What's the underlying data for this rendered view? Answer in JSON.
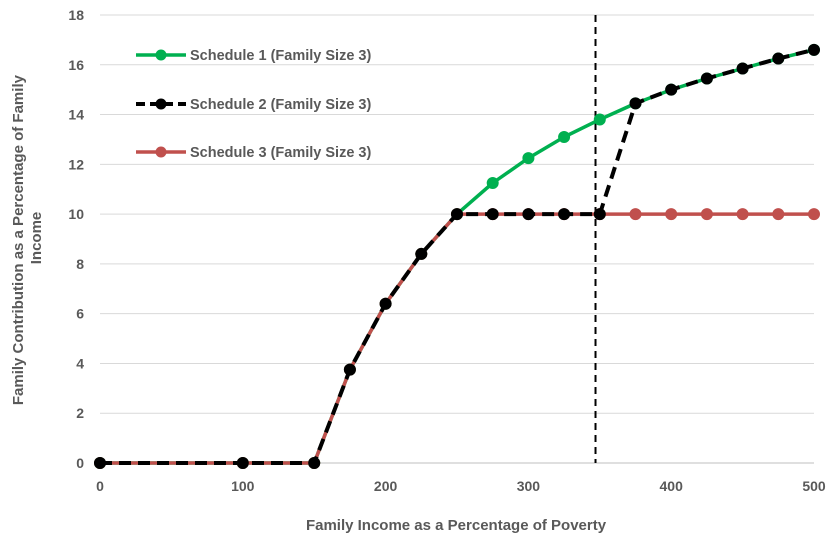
{
  "chart_data": {
    "type": "line",
    "title": "",
    "xlabel": "Family Income as a Percentage of Poverty",
    "ylabel": "Family Contribution as a Percentage of Family Income",
    "ylabel_lines": [
      "Family Contribution as a Percentage of Family",
      "Income"
    ],
    "xlim": [
      0,
      500
    ],
    "ylim": [
      0,
      18
    ],
    "x_ticks": [
      0,
      100,
      200,
      300,
      400,
      500
    ],
    "y_ticks": [
      0,
      2,
      4,
      6,
      8,
      10,
      12,
      14,
      16,
      18
    ],
    "grid": "horizontal",
    "legend_position": "top-left",
    "reference_line": {
      "x": 347,
      "style": "dashed",
      "color": "#000000"
    },
    "series": [
      {
        "name": "Schedule 1 (Family Size 3)",
        "color": "#00B050",
        "style": "solid",
        "marker": "circle",
        "points": [
          [
            0,
            0
          ],
          [
            100,
            0
          ],
          [
            150,
            0
          ],
          [
            175,
            3.75
          ],
          [
            200,
            6.4
          ],
          [
            225,
            8.4
          ],
          [
            250,
            10
          ],
          [
            275,
            11.25
          ],
          [
            300,
            12.25
          ],
          [
            325,
            13.1
          ],
          [
            350,
            13.8
          ],
          [
            375,
            14.45
          ],
          [
            400,
            15
          ],
          [
            425,
            15.45
          ],
          [
            450,
            15.85
          ],
          [
            475,
            16.25
          ],
          [
            500,
            16.6
          ]
        ]
      },
      {
        "name": "Schedule 2 (Family Size 3)",
        "color": "#000000",
        "style": "dashed",
        "marker": "circle",
        "points": [
          [
            0,
            0
          ],
          [
            100,
            0
          ],
          [
            150,
            0
          ],
          [
            175,
            3.75
          ],
          [
            200,
            6.4
          ],
          [
            225,
            8.4
          ],
          [
            250,
            10
          ],
          [
            275,
            10
          ],
          [
            300,
            10
          ],
          [
            325,
            10
          ],
          [
            350,
            10
          ],
          [
            375,
            14.45
          ],
          [
            400,
            15
          ],
          [
            425,
            15.45
          ],
          [
            450,
            15.85
          ],
          [
            475,
            16.25
          ],
          [
            500,
            16.6
          ]
        ]
      },
      {
        "name": "Schedule 3 (Family Size 3)",
        "color": "#C0504D",
        "style": "solid",
        "marker": "circle",
        "points": [
          [
            0,
            0
          ],
          [
            100,
            0
          ],
          [
            150,
            0
          ],
          [
            175,
            3.75
          ],
          [
            200,
            6.4
          ],
          [
            225,
            8.4
          ],
          [
            250,
            10
          ],
          [
            275,
            10
          ],
          [
            300,
            10
          ],
          [
            325,
            10
          ],
          [
            350,
            10
          ],
          [
            375,
            10
          ],
          [
            400,
            10
          ],
          [
            425,
            10
          ],
          [
            450,
            10
          ],
          [
            475,
            10
          ],
          [
            500,
            10
          ]
        ]
      }
    ]
  }
}
